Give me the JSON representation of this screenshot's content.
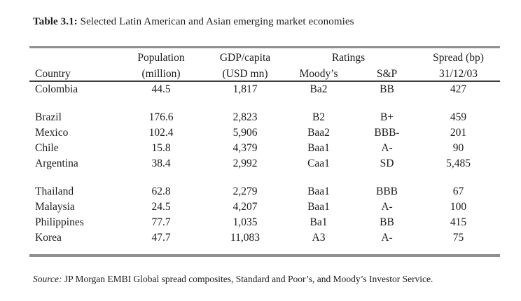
{
  "title": {
    "label": "Table 3.1:",
    "text": " Selected Latin American and Asian emerging market economies"
  },
  "table": {
    "rule_color_outer": "#8f8f8f",
    "rule_color_header": "#3f3f3f",
    "header": {
      "country": "Country",
      "population_top": "Population",
      "population_sub": "(million)",
      "gdp_top": "GDP/capita",
      "gdp_sub": "(USD mn)",
      "ratings": "Ratings",
      "moodys": "Moody’s",
      "sp": "S&P",
      "spread_top": "Spread (bp)",
      "spread_sub": "31/12/03"
    },
    "groups": [
      {
        "rows": [
          {
            "country": "Colombia",
            "population": "44.5",
            "gdp": "1,817",
            "moodys": "Ba2",
            "sp": "BB",
            "spread": "427"
          }
        ]
      },
      {
        "rows": [
          {
            "country": "Brazil",
            "population": "176.6",
            "gdp": "2,823",
            "moodys": "B2",
            "sp": "B+",
            "spread": "459"
          },
          {
            "country": "Mexico",
            "population": "102.4",
            "gdp": "5,906",
            "moodys": "Baa2",
            "sp": "BBB-",
            "spread": "201"
          },
          {
            "country": "Chile",
            "population": "15.8",
            "gdp": "4,379",
            "moodys": "Baa1",
            "sp": "A-",
            "spread": "90"
          },
          {
            "country": "Argentina",
            "population": "38.4",
            "gdp": "2,992",
            "moodys": "Caa1",
            "sp": "SD",
            "spread": "5,485"
          }
        ]
      },
      {
        "rows": [
          {
            "country": "Thailand",
            "population": "62.8",
            "gdp": "2,279",
            "moodys": "Baa1",
            "sp": "BBB",
            "spread": "67"
          },
          {
            "country": "Malaysia",
            "population": "24.5",
            "gdp": "4,207",
            "moodys": "Baa1",
            "sp": "A-",
            "spread": "100"
          },
          {
            "country": "Philippines",
            "population": "77.7",
            "gdp": "1,035",
            "moodys": "Ba1",
            "sp": "BB",
            "spread": "415"
          },
          {
            "country": "Korea",
            "population": "47.7",
            "gdp": "11,083",
            "moodys": "A3",
            "sp": "A-",
            "spread": "75"
          }
        ]
      }
    ]
  },
  "source": {
    "label": "Source:",
    "text": " JP Morgan EMBI Global spread composites, Standard and Poor’s, and Moody’s Investor Service."
  }
}
